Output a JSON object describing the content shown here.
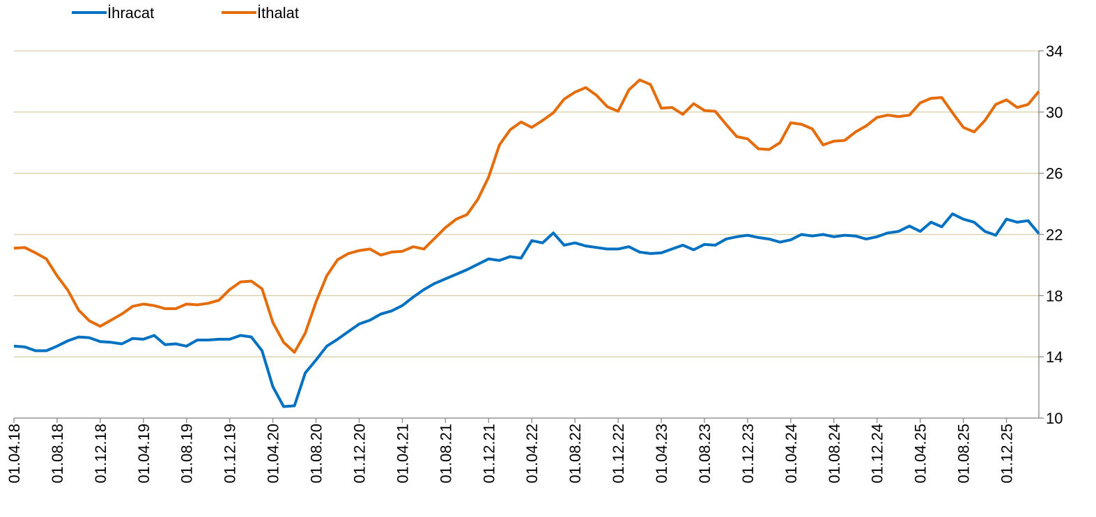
{
  "chart_data": {
    "type": "line",
    "categories": [
      "01.04.18",
      null,
      null,
      null,
      "01.08.18",
      null,
      null,
      null,
      "01.12.18",
      null,
      null,
      null,
      "01.04.19",
      null,
      null,
      null,
      "01.08.19",
      null,
      null,
      null,
      "01.12.19",
      null,
      null,
      null,
      "01.04.20",
      null,
      null,
      null,
      "01.08.20",
      null,
      null,
      null,
      "01.12.20",
      null,
      null,
      null,
      "01.04.21",
      null,
      null,
      null,
      "01.08.21",
      null,
      null,
      null,
      "01.12.21",
      null,
      null,
      null,
      "01.04.22",
      null,
      null,
      null,
      "01.08.22",
      null,
      null,
      null,
      "01.12.22",
      null,
      null,
      null,
      "01.04.23",
      null,
      null,
      null,
      "01.08.23",
      null,
      null,
      null,
      "01.12.23",
      null,
      null,
      null,
      "01.04.24",
      null,
      null,
      null,
      "01.08.24",
      null,
      null,
      null,
      "01.12.24",
      null,
      null,
      null,
      "01.04.25",
      null,
      null,
      null,
      "01.08.25",
      null,
      null,
      null,
      "01.12.25",
      null,
      null,
      null
    ],
    "series": [
      {
        "name": "İhracat",
        "color": "#0070c0",
        "values": [
          14.7,
          14.65,
          14.4,
          14.4,
          14.7,
          15.05,
          15.3,
          15.25,
          15.0,
          14.95,
          14.85,
          15.2,
          15.15,
          15.4,
          14.8,
          14.85,
          14.7,
          15.1,
          15.1,
          15.15,
          15.15,
          15.4,
          15.3,
          14.4,
          12.05,
          10.75,
          10.8,
          12.95,
          13.8,
          14.7,
          15.15,
          15.65,
          16.15,
          16.4,
          16.8,
          17.0,
          17.35,
          17.9,
          18.4,
          18.8,
          19.1,
          19.4,
          19.7,
          20.05,
          20.4,
          20.3,
          20.55,
          20.45,
          21.6,
          21.45,
          22.1,
          21.3,
          21.45,
          21.25,
          21.15,
          21.05,
          21.05,
          21.2,
          20.85,
          20.75,
          20.8,
          21.05,
          21.3,
          21.0,
          21.35,
          21.3,
          21.7,
          21.85,
          21.95,
          21.8,
          21.7,
          21.5,
          21.65,
          22.0,
          21.9,
          22.0,
          21.85,
          21.95,
          21.9,
          21.7,
          21.85,
          22.1,
          22.2,
          22.55,
          22.2,
          22.8,
          22.5,
          23.35,
          23.0,
          22.8,
          22.2,
          21.95,
          23.0,
          22.8,
          22.9,
          22.05
        ]
      },
      {
        "name": "İthalat",
        "color": "#e46c0a",
        "values": [
          21.1,
          21.15,
          20.8,
          20.4,
          19.3,
          18.35,
          17.05,
          16.35,
          16.0,
          16.4,
          16.8,
          17.3,
          17.45,
          17.35,
          17.15,
          17.15,
          17.45,
          17.4,
          17.5,
          17.7,
          18.4,
          18.9,
          18.95,
          18.45,
          16.25,
          14.95,
          14.3,
          15.55,
          17.6,
          19.3,
          20.35,
          20.75,
          20.95,
          21.05,
          20.65,
          20.85,
          20.9,
          21.2,
          21.05,
          21.75,
          22.45,
          23.0,
          23.3,
          24.3,
          25.75,
          27.85,
          28.85,
          29.35,
          29.0,
          29.45,
          29.95,
          30.85,
          31.3,
          31.6,
          31.1,
          30.35,
          30.05,
          31.45,
          32.1,
          31.8,
          30.25,
          30.3,
          29.85,
          30.55,
          30.1,
          30.05,
          29.2,
          28.4,
          28.25,
          27.6,
          27.55,
          28.0,
          29.3,
          29.2,
          28.9,
          27.85,
          28.1,
          28.15,
          28.7,
          29.1,
          29.65,
          29.8,
          29.7,
          29.8,
          30.6,
          30.9,
          30.95,
          29.95,
          29.0,
          28.7,
          29.45,
          30.5,
          30.8,
          30.3,
          30.5,
          31.35
        ]
      }
    ],
    "ylim": [
      10,
      34
    ],
    "yticks": [
      10,
      14,
      18,
      22,
      26,
      30,
      34
    ],
    "grid": true,
    "y_axis_side": "right",
    "legend": "top-left"
  }
}
